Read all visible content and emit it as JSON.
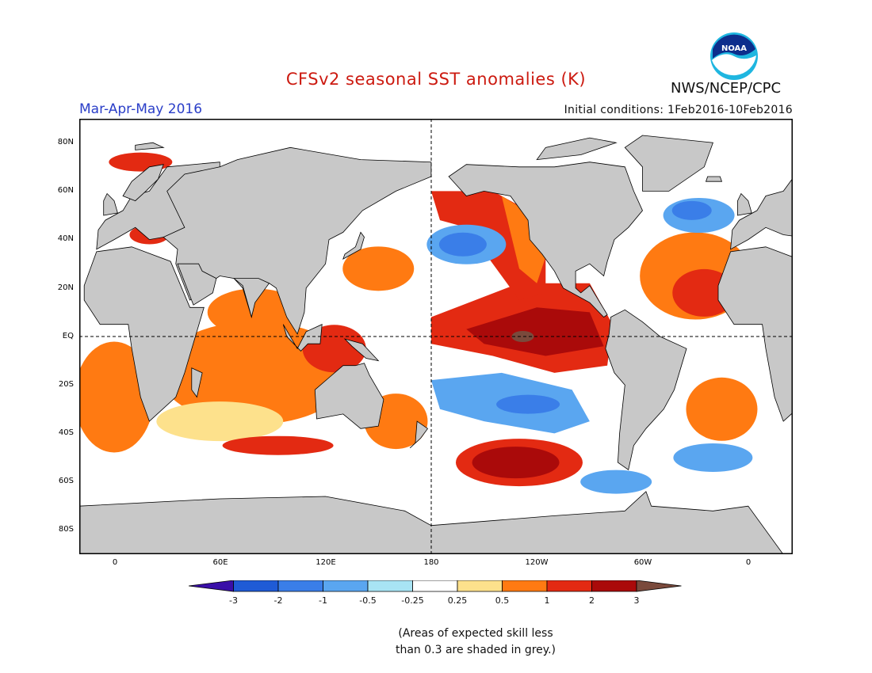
{
  "header": {
    "title": "CFSv2 seasonal SST anomalies (K)",
    "season": "Mar-Apr-May 2016",
    "initial_conditions": "Initial conditions: 1Feb2016-10Feb2016",
    "agency": "NWS/NCEP/CPC",
    "logo_text": "NOAA"
  },
  "map": {
    "projection": "equirectangular",
    "lon_center": "180",
    "lat_labels": [
      "80N",
      "60N",
      "40N",
      "20N",
      "EQ",
      "20S",
      "40S",
      "60S",
      "80S"
    ],
    "lon_labels": [
      "0",
      "60E",
      "120E",
      "180",
      "120W",
      "60W",
      "0"
    ],
    "colors": {
      "land": "#c8c8c8",
      "ocean_neutral": "#ffffff",
      "frame": "#000000"
    }
  },
  "colorbar": {
    "labels": [
      "-3",
      "-2",
      "-1",
      "-0.5",
      "-0.25",
      "0.25",
      "0.5",
      "1",
      "2",
      "3"
    ],
    "colors": [
      "#3a0fa8",
      "#1f5bd6",
      "#3a7ee8",
      "#5aa6f0",
      "#a8e4f4",
      "#ffffff",
      "#fde18c",
      "#ff7a12",
      "#e32a12",
      "#aa0a0a",
      "#7a4a3c"
    ]
  },
  "note": {
    "line1": "(Areas of expected skill less",
    "line2": "than 0.3 are shaded in grey.)"
  }
}
